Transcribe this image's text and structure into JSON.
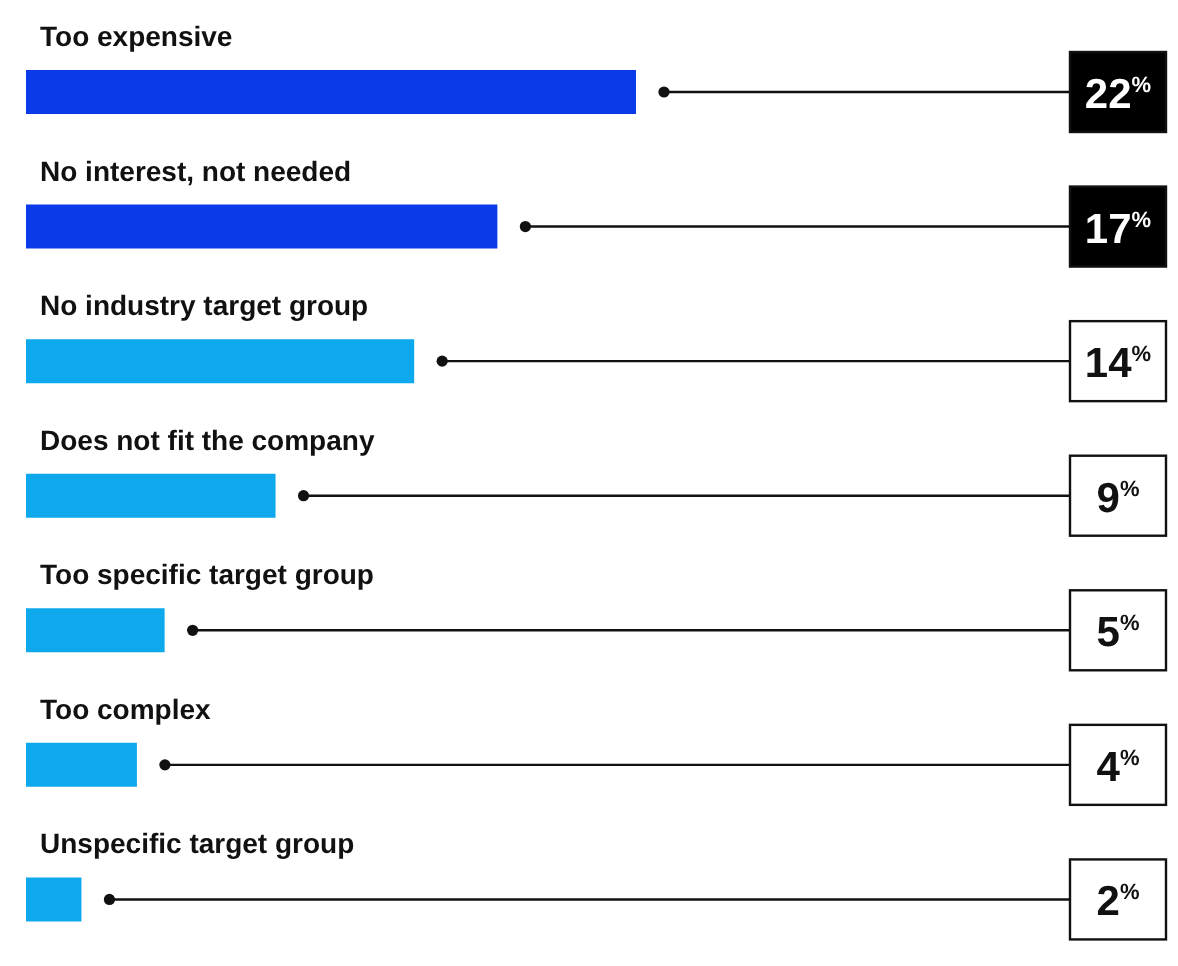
{
  "chart_data": {
    "type": "bar",
    "orientation": "horizontal",
    "categories": [
      "Too expensive",
      "No interest, not needed",
      "No industry target group",
      "Does not fit the company",
      "Too specific target group",
      "Too complex",
      "Unspecific target group"
    ],
    "values": [
      22,
      17,
      14,
      9,
      5,
      4,
      2
    ],
    "colors": [
      "#0a3be8",
      "#0a3be8",
      "#0ea8ec",
      "#0ea8ec",
      "#0ea8ec",
      "#0ea8ec",
      "#0ea8ec"
    ],
    "value_labels": [
      "22$^{%}$",
      "17$^{%}$",
      "14$^{%}$",
      "9$^{%}$",
      "5$^{%}$",
      "4$^{%}$",
      "2$^{%}$"
    ],
    "grid": false,
    "legend": false
  }
}
